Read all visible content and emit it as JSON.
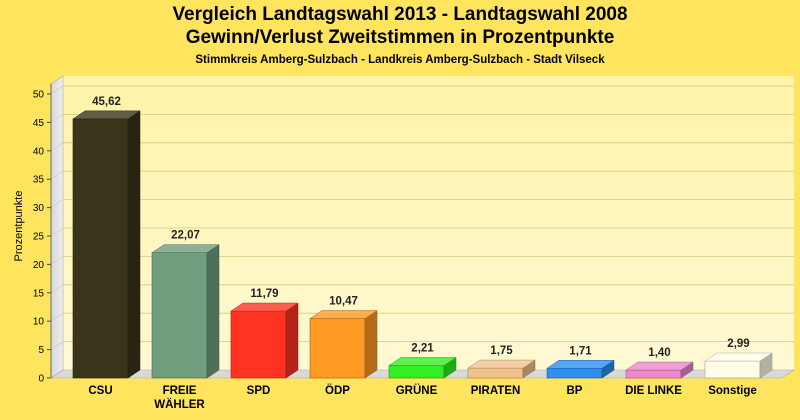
{
  "chart_data": {
    "type": "bar",
    "title": "Vergleich Landtagswahl 2013 - Landtagswahl 2008",
    "subtitle": "Gewinn/Verlust Zweitstimmen in Prozentpunkte",
    "subsubtitle": "Stimmkreis Amberg-Sulzbach - Landkreis Amberg-Sulzbach - Stadt Vilseck",
    "ylabel": "Prozentpunkte",
    "xlabel": "",
    "ylim": [
      0,
      50
    ],
    "yticks": [
      "0",
      "5",
      "10",
      "15",
      "20",
      "25",
      "30",
      "35",
      "40",
      "45",
      "50"
    ],
    "grid": true,
    "categories": [
      "CSU",
      "FREIE WÄHLER",
      "SPD",
      "ÖDP",
      "GRÜNE",
      "PIRATEN",
      "BP",
      "DIE LINKE",
      "Sonstige"
    ],
    "category_lines": [
      [
        "CSU"
      ],
      [
        "FREIE",
        "WÄHLER"
      ],
      [
        "SPD"
      ],
      [
        "ÖDP"
      ],
      [
        "GRÜNE"
      ],
      [
        "PIRATEN"
      ],
      [
        "BP"
      ],
      [
        "DIE LINKE"
      ],
      [
        "Sonstige"
      ]
    ],
    "values": [
      45.62,
      22.07,
      11.79,
      10.47,
      2.21,
      1.75,
      1.71,
      1.4,
      2.99
    ],
    "value_labels": [
      "45,62",
      "22,07",
      "11,79",
      "10,47",
      "2,21",
      "1,75",
      "1,71",
      "1,40",
      "2,99"
    ],
    "colors": [
      "#3a341a",
      "#6f9e7e",
      "#ff3322",
      "#ff9922",
      "#33ee22",
      "#f2c28c",
      "#2e8ff0",
      "#ee88cc",
      "#fffde8"
    ]
  }
}
